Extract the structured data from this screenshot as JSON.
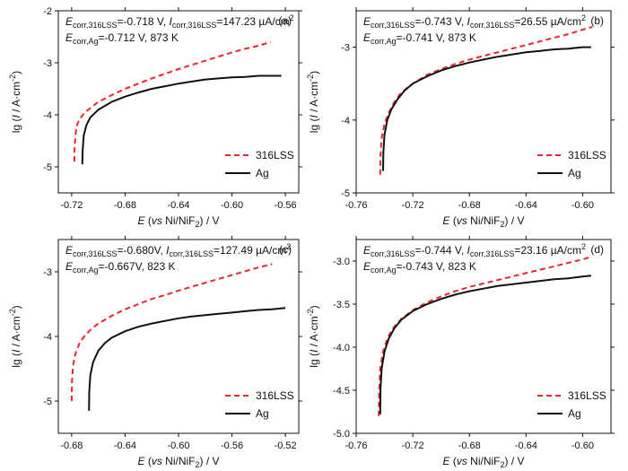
{
  "chart_data": [
    {
      "type": "line",
      "panel_label": "(a)",
      "annotations": {
        "line1": {
          "E": "E",
          "sub1": "corr,316LSS",
          "t1": "=-0.718 V, ",
          "I": "I",
          "sub2": "corr,316LSS",
          "t2": "=147.23 µA/cm",
          "sup": "2"
        },
        "line2": {
          "E": "E",
          "sub1": "corr,Ag",
          "t1": "=-0.712 V, 873 K"
        }
      },
      "xlabel": {
        "italic": "E",
        "a": " (",
        "vs": "vs",
        "b": " Ni/NiF",
        "sub": "2",
        "c": ") / V"
      },
      "ylabel": {
        "a": "lg (",
        "italic": "I",
        "b": " / A·cm",
        "sup": "-2",
        "c": ")"
      },
      "xlim": [
        -0.73,
        -0.55
      ],
      "ylim": [
        -5.5,
        -2
      ],
      "xticks": [
        "-0.72",
        "-0.68",
        "-0.64",
        "-0.60",
        "-0.56"
      ],
      "yticks": [
        "-2",
        "-3",
        "-4",
        "-5"
      ],
      "legend": [
        "316LSS",
        "Ag"
      ],
      "legend_position": "bottom-right",
      "series": [
        {
          "name": "316LSS",
          "color": "#e8282a",
          "style": "dashed",
          "x": [
            -0.718,
            -0.7178,
            -0.717,
            -0.716,
            -0.714,
            -0.71,
            -0.705,
            -0.7,
            -0.69,
            -0.68,
            -0.67,
            -0.66,
            -0.65,
            -0.64,
            -0.63,
            -0.62,
            -0.61,
            -0.6,
            -0.59,
            -0.58,
            -0.571
          ],
          "y": [
            -4.9,
            -4.6,
            -4.35,
            -4.2,
            -4.08,
            -3.95,
            -3.85,
            -3.75,
            -3.62,
            -3.5,
            -3.4,
            -3.3,
            -3.21,
            -3.12,
            -3.04,
            -2.96,
            -2.88,
            -2.8,
            -2.73,
            -2.67,
            -2.6
          ]
        },
        {
          "name": "Ag",
          "color": "#111111",
          "style": "solid",
          "x": [
            -0.712,
            -0.7118,
            -0.711,
            -0.709,
            -0.706,
            -0.7,
            -0.69,
            -0.68,
            -0.67,
            -0.66,
            -0.65,
            -0.64,
            -0.63,
            -0.62,
            -0.61,
            -0.6,
            -0.59,
            -0.58,
            -0.57,
            -0.563
          ],
          "y": [
            -4.95,
            -4.7,
            -4.4,
            -4.2,
            -4.05,
            -3.9,
            -3.75,
            -3.65,
            -3.57,
            -3.5,
            -3.45,
            -3.4,
            -3.36,
            -3.32,
            -3.3,
            -3.28,
            -3.27,
            -3.25,
            -3.25,
            -3.25
          ]
        }
      ]
    },
    {
      "type": "line",
      "panel_label": "(b)",
      "annotations": {
        "line1": {
          "E": "E",
          "sub1": "corr,316LSS",
          "t1": "=-0.743 V, ",
          "I": "I",
          "sub2": "corr,316LSS",
          "t2": "=26.55 µA/cm",
          "sup": "2"
        },
        "line2": {
          "E": "E",
          "sub1": "corr,Ag",
          "t1": "=-0.741 V, 873 K"
        }
      },
      "xlabel": {
        "italic": "E",
        "a": " (",
        "vs": "vs",
        "b": " Ni/NiF",
        "sub": "2",
        "c": ") / V"
      },
      "ylabel": {
        "a": "lg (",
        "italic": "I",
        "b": " / A·cm",
        "sup": "-2",
        "c": ")"
      },
      "xlim": [
        -0.76,
        -0.58
      ],
      "ylim": [
        -5,
        -2.5
      ],
      "xticks": [
        "-0.76",
        "-0.72",
        "-0.68",
        "-0.64",
        "-0.60"
      ],
      "yticks": [
        "-3",
        "-4",
        "-5"
      ],
      "legend": [
        "316LSS",
        "Ag"
      ],
      "legend_position": "bottom-right",
      "series": [
        {
          "name": "316LSS",
          "color": "#e8282a",
          "style": "dashed",
          "x": [
            -0.743,
            -0.7428,
            -0.742,
            -0.74,
            -0.737,
            -0.733,
            -0.728,
            -0.72,
            -0.71,
            -0.7,
            -0.69,
            -0.68,
            -0.67,
            -0.66,
            -0.65,
            -0.64,
            -0.63,
            -0.62,
            -0.61,
            -0.6,
            -0.593
          ],
          "y": [
            -4.75,
            -4.5,
            -4.25,
            -4.05,
            -3.9,
            -3.75,
            -3.62,
            -3.5,
            -3.38,
            -3.3,
            -3.23,
            -3.17,
            -3.12,
            -3.07,
            -3.02,
            -2.97,
            -2.92,
            -2.87,
            -2.82,
            -2.76,
            -2.72
          ]
        },
        {
          "name": "Ag",
          "color": "#111111",
          "style": "solid",
          "x": [
            -0.741,
            -0.7408,
            -0.74,
            -0.738,
            -0.735,
            -0.731,
            -0.726,
            -0.72,
            -0.71,
            -0.7,
            -0.69,
            -0.68,
            -0.67,
            -0.66,
            -0.65,
            -0.64,
            -0.63,
            -0.62,
            -0.61,
            -0.6,
            -0.594
          ],
          "y": [
            -4.7,
            -4.45,
            -4.2,
            -4.0,
            -3.85,
            -3.72,
            -3.6,
            -3.5,
            -3.4,
            -3.32,
            -3.26,
            -3.21,
            -3.17,
            -3.13,
            -3.1,
            -3.07,
            -3.05,
            -3.03,
            -3.02,
            -3.0,
            -3.0
          ]
        }
      ]
    },
    {
      "type": "line",
      "panel_label": "(c)",
      "annotations": {
        "line1": {
          "E": "E",
          "sub1": "corr,316LSS",
          "t1": "=-0.680V, ",
          "I": "I",
          "sub2": "corr,316LSS",
          "t2": "=127.49 µA/cm",
          "sup": "2"
        },
        "line2": {
          "E": "E",
          "sub1": "corr,Ag",
          "t1": "=-0.667V, 823 K"
        }
      },
      "xlabel": {
        "italic": "E",
        "a": " (",
        "vs": "vs",
        "b": " Ni/NiF",
        "sub": "2",
        "c": ") / V"
      },
      "ylabel": {
        "a": "lg (",
        "italic": "I",
        "b": " / A·cm",
        "sup": "-2",
        "c": ")"
      },
      "xlim": [
        -0.69,
        -0.51
      ],
      "ylim": [
        -5.5,
        -2.5
      ],
      "xticks": [
        "-0.68",
        "-0.64",
        "-0.60",
        "-0.56",
        "-0.52"
      ],
      "yticks": [
        "-3",
        "-4",
        "-5"
      ],
      "legend": [
        "316LSS",
        "Ag"
      ],
      "legend_position": "bottom-right",
      "series": [
        {
          "name": "316LSS",
          "color": "#e8282a",
          "style": "dashed",
          "x": [
            -0.68,
            -0.6798,
            -0.679,
            -0.677,
            -0.674,
            -0.67,
            -0.665,
            -0.66,
            -0.65,
            -0.64,
            -0.63,
            -0.62,
            -0.61,
            -0.6,
            -0.59,
            -0.58,
            -0.57,
            -0.56,
            -0.55,
            -0.54,
            -0.53
          ],
          "y": [
            -5.0,
            -4.7,
            -4.45,
            -4.25,
            -4.1,
            -3.98,
            -3.88,
            -3.8,
            -3.68,
            -3.58,
            -3.5,
            -3.42,
            -3.36,
            -3.29,
            -3.23,
            -3.17,
            -3.11,
            -3.05,
            -2.99,
            -2.93,
            -2.88
          ]
        },
        {
          "name": "Ag",
          "color": "#111111",
          "style": "solid",
          "x": [
            -0.667,
            -0.6668,
            -0.666,
            -0.664,
            -0.66,
            -0.655,
            -0.65,
            -0.64,
            -0.63,
            -0.62,
            -0.61,
            -0.6,
            -0.59,
            -0.58,
            -0.57,
            -0.56,
            -0.55,
            -0.54,
            -0.53,
            -0.52
          ],
          "y": [
            -5.15,
            -4.85,
            -4.6,
            -4.4,
            -4.22,
            -4.1,
            -4.02,
            -3.92,
            -3.85,
            -3.8,
            -3.76,
            -3.72,
            -3.69,
            -3.67,
            -3.65,
            -3.63,
            -3.61,
            -3.59,
            -3.58,
            -3.56
          ]
        }
      ]
    },
    {
      "type": "line",
      "panel_label": "(d)",
      "annotations": {
        "line1": {
          "E": "E",
          "sub1": "corr,316LSS",
          "t1": "=-0.744 V, ",
          "I": "I",
          "sub2": "corr,316LSS",
          "t2": "=23.16 µA/cm",
          "sup": "2"
        },
        "line2": {
          "E": "E",
          "sub1": "corr,Ag",
          "t1": "=-0.743 V, 823 K"
        }
      },
      "xlabel": {
        "italic": "E",
        "a": " (",
        "vs": "vs",
        "b": " Ni/NiF",
        "sub": "2",
        "c": ") / V"
      },
      "ylabel": {
        "a": "lg (",
        "italic": "I",
        "b": " / A·cm",
        "sup": "-2",
        "c": ")"
      },
      "xlim": [
        -0.76,
        -0.58
      ],
      "ylim": [
        -5.0,
        -2.75
      ],
      "xticks": [
        "-0.76",
        "-0.72",
        "-0.68",
        "-0.64",
        "-0.60"
      ],
      "yticks": [
        "-3.0",
        "-3.5",
        "-4.0",
        "-4.5",
        "-5.0"
      ],
      "legend": [
        "316LSS",
        "Ag"
      ],
      "legend_position": "bottom-right",
      "series": [
        {
          "name": "316LSS",
          "color": "#e8282a",
          "style": "dashed",
          "x": [
            -0.744,
            -0.7438,
            -0.743,
            -0.741,
            -0.738,
            -0.734,
            -0.728,
            -0.72,
            -0.71,
            -0.7,
            -0.69,
            -0.68,
            -0.67,
            -0.66,
            -0.65,
            -0.64,
            -0.63,
            -0.62,
            -0.61,
            -0.6,
            -0.594
          ],
          "y": [
            -4.8,
            -4.5,
            -4.25,
            -4.05,
            -3.9,
            -3.78,
            -3.67,
            -3.57,
            -3.48,
            -3.41,
            -3.35,
            -3.3,
            -3.26,
            -3.22,
            -3.18,
            -3.14,
            -3.1,
            -3.06,
            -3.02,
            -2.98,
            -2.95
          ]
        },
        {
          "name": "Ag",
          "color": "#111111",
          "style": "solid",
          "x": [
            -0.743,
            -0.7428,
            -0.742,
            -0.74,
            -0.737,
            -0.733,
            -0.728,
            -0.72,
            -0.71,
            -0.7,
            -0.69,
            -0.68,
            -0.67,
            -0.66,
            -0.65,
            -0.64,
            -0.63,
            -0.62,
            -0.61,
            -0.6,
            -0.594
          ],
          "y": [
            -4.78,
            -4.5,
            -4.25,
            -4.05,
            -3.9,
            -3.78,
            -3.68,
            -3.58,
            -3.5,
            -3.44,
            -3.39,
            -3.35,
            -3.32,
            -3.29,
            -3.27,
            -3.25,
            -3.23,
            -3.21,
            -3.2,
            -3.18,
            -3.17
          ]
        }
      ]
    }
  ]
}
